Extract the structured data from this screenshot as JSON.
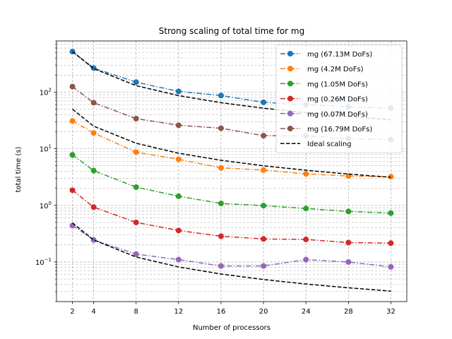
{
  "chart_data": {
    "type": "line",
    "title": "Strong scaling of total time for mg",
    "xlabel": "Number of processors",
    "ylabel": "total time (s)",
    "x": [
      2,
      4,
      8,
      12,
      16,
      20,
      24,
      28,
      32
    ],
    "x_ticks": [
      "2",
      "4",
      "8",
      "12",
      "16",
      "20",
      "24",
      "28",
      "32"
    ],
    "xlim": [
      0.5,
      33.5
    ],
    "y_scale": "log",
    "ylim": [
      0.02,
      800
    ],
    "y_ticks": [
      0.1,
      1,
      10,
      100
    ],
    "y_tick_labels": [
      {
        "base": "10",
        "exp": "−1"
      },
      {
        "base": "10",
        "exp": "0"
      },
      {
        "base": "10",
        "exp": "1"
      },
      {
        "base": "10",
        "exp": "2"
      }
    ],
    "grid": true,
    "legend_position": "top-right",
    "series": [
      {
        "name": "mg (67.13M DoFs)",
        "color": "#1f77b4",
        "values": [
          520,
          265,
          150,
          103,
          87,
          66,
          60,
          55,
          52
        ]
      },
      {
        "name": "mg (4.2M DoFs)",
        "color": "#ff7f0e",
        "values": [
          31,
          19,
          8.7,
          6.5,
          4.6,
          4.2,
          3.6,
          3.3,
          3.2
        ]
      },
      {
        "name": "mg (1.05M DoFs)",
        "color": "#2ca02c",
        "values": [
          7.8,
          4.1,
          2.1,
          1.45,
          1.08,
          0.99,
          0.88,
          0.78,
          0.73
        ]
      },
      {
        "name": "mg (0.26M DoFs)",
        "color": "#d62728",
        "values": [
          1.85,
          0.93,
          0.5,
          0.36,
          0.285,
          0.255,
          0.25,
          0.22,
          0.215
        ]
      },
      {
        "name": "mg (0.07M DoFs)",
        "color": "#9467bd",
        "values": [
          0.44,
          0.245,
          0.138,
          0.11,
          0.085,
          0.085,
          0.11,
          0.1,
          0.082
        ]
      },
      {
        "name": "mg (16.79M DoFs)",
        "color": "#8c564b",
        "values": [
          125,
          65,
          34,
          26,
          23,
          17,
          17,
          15,
          14.5
        ]
      }
    ],
    "ideal": {
      "name": "Ideal scaling",
      "color": "#000000",
      "segments": [
        {
          "x": [
            2,
            4,
            8,
            12,
            16,
            20,
            24,
            28,
            32
          ],
          "values": [
            520,
            260,
            130,
            86.7,
            65,
            52,
            43.3,
            37.1,
            32.5
          ]
        },
        {
          "x": [
            2,
            4,
            8,
            12,
            16,
            20,
            24,
            28,
            32
          ],
          "values": [
            50,
            25,
            12.5,
            8.33,
            6.25,
            5,
            4.17,
            3.57,
            3.13
          ]
        },
        {
          "x": [
            2,
            4,
            8,
            12,
            16,
            20,
            24,
            28,
            32
          ],
          "values": [
            0.49,
            0.245,
            0.1225,
            0.0817,
            0.0613,
            0.049,
            0.0408,
            0.035,
            0.0306
          ]
        }
      ]
    }
  }
}
